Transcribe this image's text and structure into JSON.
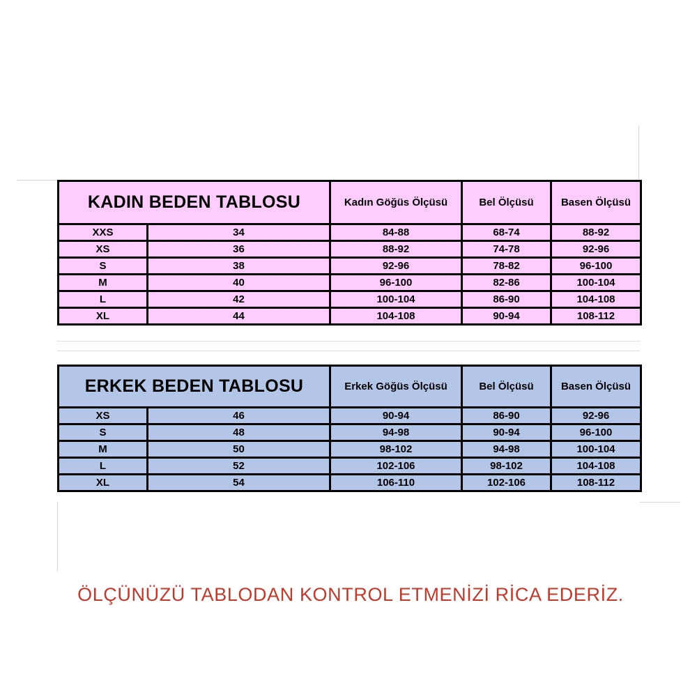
{
  "colors": {
    "women_fill": "#ffccff",
    "men_fill": "#b4c6e7",
    "footer_text": "#c0392b"
  },
  "women_table": {
    "title": "KADIN BEDEN TABLOSU",
    "headers": [
      "Kadın Göğüs Ölçüsü",
      "Bel Ölçüsü",
      "Basen Ölçüsü"
    ],
    "rows": [
      [
        "XXS",
        "34",
        "84-88",
        "68-74",
        "88-92"
      ],
      [
        "XS",
        "36",
        "88-92",
        "74-78",
        "92-96"
      ],
      [
        "S",
        "38",
        "92-96",
        "78-82",
        "96-100"
      ],
      [
        "M",
        "40",
        "96-100",
        "82-86",
        "100-104"
      ],
      [
        "L",
        "42",
        "100-104",
        "86-90",
        "104-108"
      ],
      [
        "XL",
        "44",
        "104-108",
        "90-94",
        "108-112"
      ]
    ]
  },
  "men_table": {
    "title": "ERKEK BEDEN TABLOSU",
    "headers": [
      "Erkek Göğüs Ölçüsü",
      "Bel Ölçüsü",
      "Basen Ölçüsü"
    ],
    "rows": [
      [
        "XS",
        "46",
        "90-94",
        "86-90",
        "92-96"
      ],
      [
        "S",
        "48",
        "94-98",
        "90-94",
        "96-100"
      ],
      [
        "M",
        "50",
        "98-102",
        "94-98",
        "100-104"
      ],
      [
        "L",
        "52",
        "102-106",
        "98-102",
        "104-108"
      ],
      [
        "XL",
        "54",
        "106-110",
        "102-106",
        "108-112"
      ]
    ]
  },
  "footer": "ÖLÇÜNÜZÜ TABLODAN KONTROL ETMENİZİ RİCA EDERİZ."
}
